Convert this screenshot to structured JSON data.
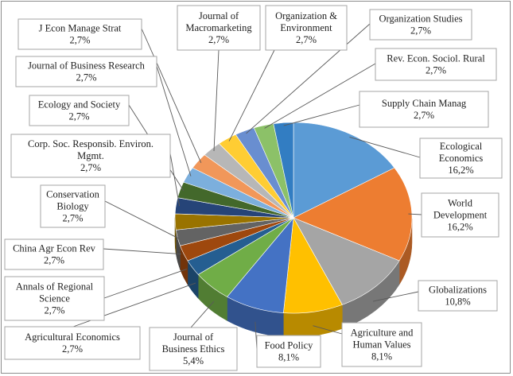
{
  "chart_data": {
    "type": "pie",
    "title": "",
    "value_format": "percent_comma",
    "slices": [
      {
        "label": "Ecological Economics",
        "value": 16.2,
        "display": "16,2%",
        "color": "#5b9bd5"
      },
      {
        "label": "World Development",
        "value": 16.2,
        "display": "16,2%",
        "color": "#ed7d31"
      },
      {
        "label": "Globalizations",
        "value": 10.8,
        "display": "10,8%",
        "color": "#a5a5a5"
      },
      {
        "label": "Agriculture and Human Values",
        "value": 8.1,
        "display": "8,1%",
        "color": "#ffc000"
      },
      {
        "label": "Food Policy",
        "value": 8.1,
        "display": "8,1%",
        "color": "#4472c4"
      },
      {
        "label": "Journal of Business Ethics",
        "value": 5.4,
        "display": "5,4%",
        "color": "#70ad47"
      },
      {
        "label": "Agricultural Economics",
        "value": 2.7,
        "display": "2,7%",
        "color": "#255e91"
      },
      {
        "label": "Annals of Regional Science",
        "value": 2.7,
        "display": "2,7%",
        "color": "#9e480e"
      },
      {
        "label": "China Agr Econ Rev",
        "value": 2.7,
        "display": "2,7%",
        "color": "#636363"
      },
      {
        "label": "Conservation Biology",
        "value": 2.7,
        "display": "2,7%",
        "color": "#997300"
      },
      {
        "label": "Corp. Soc. Responsib. Environ. Mgmt.",
        "value": 2.7,
        "display": "2,7%",
        "color": "#264478"
      },
      {
        "label": "Ecology and Society",
        "value": 2.7,
        "display": "2,7%",
        "color": "#43682b"
      },
      {
        "label": "Journal of Business Research",
        "value": 2.7,
        "display": "2,7%",
        "color": "#7cafdd"
      },
      {
        "label": "J Econ Manage Strat",
        "value": 2.7,
        "display": "2,7%",
        "color": "#f1975a"
      },
      {
        "label": "Journal of Macromarketing",
        "value": 2.7,
        "display": "2,7%",
        "color": "#b7b7b7"
      },
      {
        "label": "Organization & Environment",
        "value": 2.7,
        "display": "2,7%",
        "color": "#ffcd33"
      },
      {
        "label": "Organization Studies",
        "value": 2.7,
        "display": "2,7%",
        "color": "#698ed0"
      },
      {
        "label": "Rev. Econ. Sociol. Rural",
        "value": 2.7,
        "display": "2,7%",
        "color": "#8cc168"
      },
      {
        "label": "Supply Chain Manag",
        "value": 2.7,
        "display": "2,7%",
        "color": "#327dc2"
      }
    ]
  },
  "labels": [
    {
      "lines": [
        "Ecological",
        "Economics"
      ],
      "value": "16,2%"
    },
    {
      "lines": [
        "World",
        "Development"
      ],
      "value": "16,2%"
    },
    {
      "lines": [
        "Globalizations"
      ],
      "value": "10,8%"
    },
    {
      "lines": [
        "Agriculture and",
        "Human Values"
      ],
      "value": "8,1%"
    },
    {
      "lines": [
        "Food Policy"
      ],
      "value": "8,1%"
    },
    {
      "lines": [
        "Journal of",
        "Business Ethics"
      ],
      "value": "5,4%"
    },
    {
      "lines": [
        "Agricultural Economics"
      ],
      "value": "2,7%"
    },
    {
      "lines": [
        "Annals of Regional",
        "Science"
      ],
      "value": "2,7%"
    },
    {
      "lines": [
        "China Agr Econ Rev"
      ],
      "value": "2,7%"
    },
    {
      "lines": [
        "Conservation",
        "Biology"
      ],
      "value": "2,7%"
    },
    {
      "lines": [
        "Corp. Soc. Responsib. Environ.",
        "Mgmt."
      ],
      "value": "2,7%"
    },
    {
      "lines": [
        "Ecology and Society"
      ],
      "value": "2,7%"
    },
    {
      "lines": [
        "Journal of Business Research"
      ],
      "value": "2,7%"
    },
    {
      "lines": [
        "J Econ Manage Strat"
      ],
      "value": "2,7%"
    },
    {
      "lines": [
        "Journal of",
        "Macromarketing"
      ],
      "value": "2,7%"
    },
    {
      "lines": [
        "Organization  &",
        "Environment"
      ],
      "value": "2,7%"
    },
    {
      "lines": [
        "Organization  Studies"
      ],
      "value": "2,7%"
    },
    {
      "lines": [
        "Rev. Econ. Sociol. Rural"
      ],
      "value": "2,7%"
    },
    {
      "lines": [
        "Supply Chain Manag"
      ],
      "value": "2,7%"
    }
  ]
}
